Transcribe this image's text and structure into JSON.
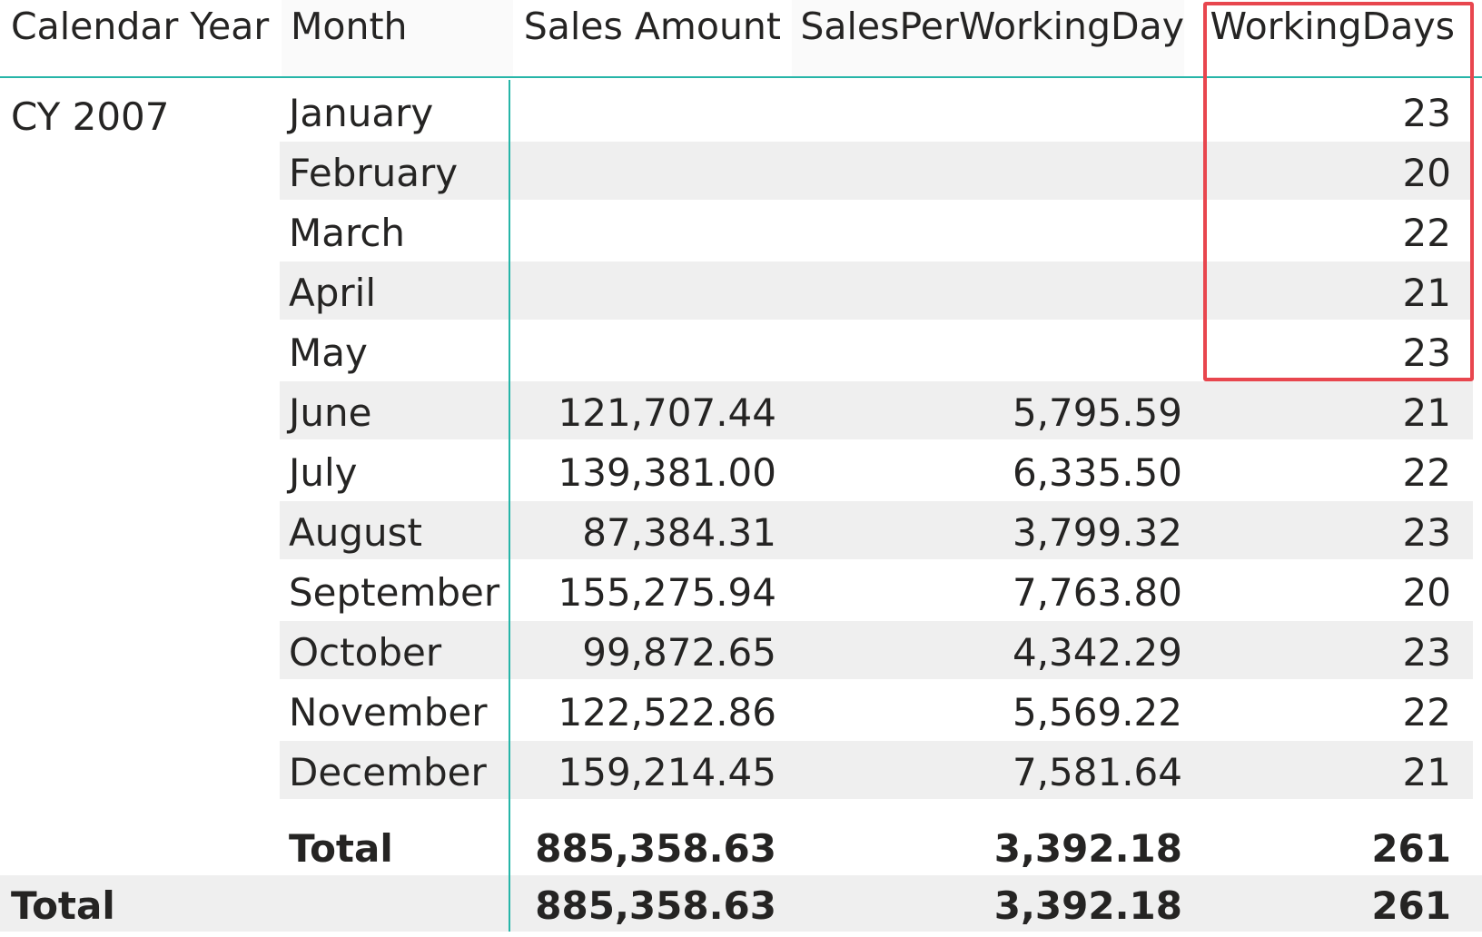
{
  "columns": {
    "year": "Calendar Year",
    "month": "Month",
    "sales": "Sales Amount",
    "spwd": "SalesPerWorkingDay",
    "wd": "WorkingDays"
  },
  "year_label": "CY 2007",
  "rows": [
    {
      "month": "January",
      "sales": "",
      "spwd": "",
      "wd": "23"
    },
    {
      "month": "February",
      "sales": "",
      "spwd": "",
      "wd": "20"
    },
    {
      "month": "March",
      "sales": "",
      "spwd": "",
      "wd": "22"
    },
    {
      "month": "April",
      "sales": "",
      "spwd": "",
      "wd": "21"
    },
    {
      "month": "May",
      "sales": "",
      "spwd": "",
      "wd": "23"
    },
    {
      "month": "June",
      "sales": "121,707.44",
      "spwd": "5,795.59",
      "wd": "21"
    },
    {
      "month": "July",
      "sales": "139,381.00",
      "spwd": "6,335.50",
      "wd": "22"
    },
    {
      "month": "August",
      "sales": "87,384.31",
      "spwd": "3,799.32",
      "wd": "23"
    },
    {
      "month": "September",
      "sales": "155,275.94",
      "spwd": "7,763.80",
      "wd": "20"
    },
    {
      "month": "October",
      "sales": "99,872.65",
      "spwd": "4,342.29",
      "wd": "23"
    },
    {
      "month": "November",
      "sales": "122,522.86",
      "spwd": "5,569.22",
      "wd": "22"
    },
    {
      "month": "December",
      "sales": "159,214.45",
      "spwd": "7,581.64",
      "wd": "21"
    }
  ],
  "subtotal": {
    "label": "Total",
    "sales": "885,358.63",
    "spwd": "3,392.18",
    "wd": "261"
  },
  "grand_total": {
    "label": "Total",
    "sales": "885,358.63",
    "spwd": "3,392.18",
    "wd": "261"
  },
  "colors": {
    "accent_line": "#26b5a8",
    "highlight_border": "#e8464e",
    "stripe": "#efefef"
  }
}
